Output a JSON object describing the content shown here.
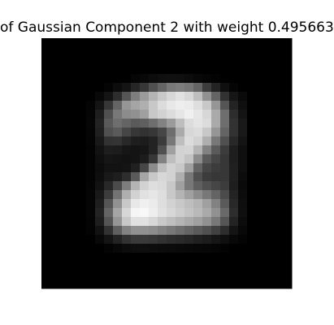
{
  "chart_data": {
    "type": "heatmap",
    "title": "of Gaussian Component 2 with weight 0.495663",
    "xlabel": "",
    "ylabel": "",
    "colormap": "gray",
    "axes": "off",
    "grid": false,
    "rows": 28,
    "cols": 28,
    "vmin": 0,
    "vmax": 255,
    "values": [
      [
        0,
        0,
        0,
        0,
        0,
        0,
        0,
        0,
        0,
        0,
        0,
        0,
        0,
        0,
        0,
        0,
        0,
        0,
        0,
        0,
        0,
        0,
        0,
        0,
        0,
        0,
        0,
        0
      ],
      [
        0,
        0,
        0,
        0,
        0,
        0,
        0,
        0,
        0,
        0,
        0,
        0,
        0,
        0,
        0,
        0,
        0,
        0,
        0,
        0,
        0,
        0,
        0,
        0,
        0,
        0,
        0,
        0
      ],
      [
        0,
        0,
        0,
        0,
        0,
        0,
        0,
        0,
        0,
        0,
        0,
        0,
        0,
        0,
        0,
        0,
        0,
        0,
        0,
        0,
        0,
        0,
        0,
        0,
        0,
        0,
        0,
        0
      ],
      [
        0,
        0,
        0,
        0,
        0,
        0,
        0,
        0,
        0,
        0,
        0,
        0,
        0,
        0,
        0,
        0,
        0,
        0,
        0,
        0,
        0,
        0,
        0,
        0,
        0,
        0,
        0,
        0
      ],
      [
        0,
        0,
        0,
        0,
        0,
        0,
        0,
        0,
        0,
        0,
        5,
        8,
        12,
        15,
        16,
        15,
        12,
        8,
        5,
        3,
        0,
        0,
        0,
        0,
        0,
        0,
        0,
        0
      ],
      [
        0,
        0,
        0,
        0,
        0,
        0,
        0,
        4,
        12,
        20,
        38,
        55,
        80,
        100,
        120,
        125,
        118,
        100,
        60,
        35,
        15,
        5,
        0,
        0,
        0,
        0,
        0,
        0
      ],
      [
        0,
        0,
        0,
        0,
        0,
        0,
        8,
        20,
        45,
        85,
        125,
        155,
        180,
        200,
        215,
        225,
        215,
        190,
        145,
        100,
        50,
        22,
        10,
        0,
        0,
        0,
        0,
        0
      ],
      [
        0,
        0,
        0,
        0,
        0,
        4,
        20,
        55,
        100,
        150,
        165,
        175,
        200,
        220,
        232,
        238,
        235,
        222,
        200,
        150,
        85,
        35,
        15,
        0,
        0,
        0,
        0,
        0
      ],
      [
        0,
        0,
        0,
        0,
        0,
        5,
        30,
        80,
        120,
        140,
        145,
        160,
        200,
        210,
        220,
        230,
        240,
        230,
        215,
        170,
        110,
        45,
        20,
        0,
        0,
        0,
        0,
        0
      ],
      [
        0,
        0,
        0,
        0,
        0,
        6,
        35,
        90,
        110,
        100,
        90,
        95,
        110,
        130,
        155,
        190,
        220,
        228,
        220,
        170,
        110,
        50,
        25,
        0,
        0,
        0,
        0,
        0
      ],
      [
        0,
        0,
        0,
        0,
        0,
        5,
        32,
        80,
        90,
        70,
        55,
        50,
        55,
        70,
        110,
        170,
        215,
        220,
        200,
        150,
        100,
        50,
        25,
        0,
        0,
        0,
        0,
        0
      ],
      [
        0,
        0,
        0,
        0,
        0,
        4,
        25,
        50,
        52,
        40,
        30,
        28,
        35,
        60,
        120,
        190,
        220,
        210,
        175,
        120,
        80,
        40,
        20,
        0,
        0,
        0,
        0,
        0
      ],
      [
        0,
        0,
        0,
        0,
        0,
        3,
        18,
        30,
        28,
        22,
        20,
        22,
        35,
        80,
        160,
        210,
        212,
        180,
        130,
        90,
        60,
        30,
        15,
        0,
        0,
        0,
        0,
        0
      ],
      [
        0,
        0,
        0,
        0,
        0,
        3,
        15,
        22,
        20,
        18,
        20,
        28,
        55,
        130,
        190,
        210,
        195,
        140,
        90,
        70,
        55,
        30,
        15,
        0,
        0,
        0,
        0,
        0
      ],
      [
        0,
        0,
        0,
        0,
        0,
        3,
        12,
        18,
        18,
        20,
        32,
        70,
        140,
        190,
        210,
        200,
        160,
        100,
        70,
        60,
        55,
        32,
        15,
        0,
        0,
        0,
        0,
        0
      ],
      [
        0,
        0,
        0,
        0,
        0,
        3,
        14,
        25,
        30,
        45,
        90,
        165,
        200,
        215,
        210,
        175,
        120,
        80,
        60,
        55,
        55,
        32,
        12,
        0,
        0,
        0,
        0,
        0
      ],
      [
        0,
        0,
        0,
        0,
        0,
        4,
        18,
        40,
        75,
        125,
        180,
        210,
        222,
        218,
        200,
        160,
        120,
        95,
        80,
        70,
        60,
        30,
        10,
        0,
        0,
        0,
        0,
        0
      ],
      [
        0,
        0,
        0,
        0,
        0,
        5,
        25,
        60,
        115,
        175,
        210,
        225,
        230,
        222,
        200,
        180,
        160,
        140,
        120,
        100,
        75,
        35,
        12,
        0,
        0,
        0,
        0,
        0
      ],
      [
        0,
        0,
        0,
        0,
        0,
        5,
        30,
        85,
        145,
        200,
        232,
        240,
        235,
        222,
        210,
        200,
        190,
        180,
        160,
        130,
        90,
        40,
        14,
        0,
        0,
        0,
        0,
        0
      ],
      [
        0,
        0,
        0,
        0,
        0,
        5,
        35,
        100,
        165,
        215,
        245,
        248,
        238,
        225,
        215,
        205,
        195,
        185,
        170,
        145,
        105,
        45,
        15,
        0,
        0,
        0,
        0,
        0
      ],
      [
        0,
        0,
        0,
        0,
        0,
        4,
        30,
        85,
        150,
        200,
        225,
        225,
        215,
        200,
        190,
        180,
        170,
        160,
        145,
        120,
        85,
        35,
        12,
        0,
        0,
        0,
        0,
        0
      ],
      [
        0,
        0,
        0,
        0,
        0,
        3,
        18,
        50,
        95,
        130,
        145,
        145,
        140,
        130,
        120,
        110,
        100,
        90,
        80,
        65,
        45,
        20,
        8,
        0,
        0,
        0,
        0,
        0
      ],
      [
        0,
        0,
        0,
        0,
        0,
        0,
        8,
        20,
        35,
        50,
        58,
        58,
        55,
        50,
        45,
        42,
        38,
        32,
        28,
        22,
        15,
        8,
        4,
        0,
        0,
        0,
        0,
        0
      ],
      [
        0,
        0,
        0,
        0,
        0,
        0,
        0,
        4,
        8,
        12,
        14,
        14,
        13,
        12,
        11,
        10,
        9,
        8,
        7,
        5,
        3,
        0,
        0,
        0,
        0,
        0,
        0,
        0
      ],
      [
        0,
        0,
        0,
        0,
        0,
        0,
        0,
        0,
        0,
        0,
        0,
        0,
        0,
        0,
        0,
        0,
        0,
        0,
        0,
        0,
        0,
        0,
        0,
        0,
        0,
        0,
        0,
        0
      ],
      [
        0,
        0,
        0,
        0,
        0,
        0,
        0,
        0,
        0,
        0,
        0,
        0,
        0,
        0,
        0,
        0,
        0,
        0,
        0,
        0,
        0,
        0,
        0,
        0,
        0,
        0,
        0,
        0
      ],
      [
        0,
        0,
        0,
        0,
        0,
        0,
        0,
        0,
        0,
        0,
        0,
        0,
        0,
        0,
        0,
        0,
        0,
        0,
        0,
        0,
        0,
        0,
        0,
        0,
        0,
        0,
        0,
        0
      ],
      [
        0,
        0,
        0,
        0,
        0,
        0,
        0,
        0,
        0,
        0,
        0,
        0,
        0,
        0,
        0,
        0,
        0,
        0,
        0,
        0,
        0,
        0,
        0,
        0,
        0,
        0,
        0,
        0
      ]
    ]
  }
}
